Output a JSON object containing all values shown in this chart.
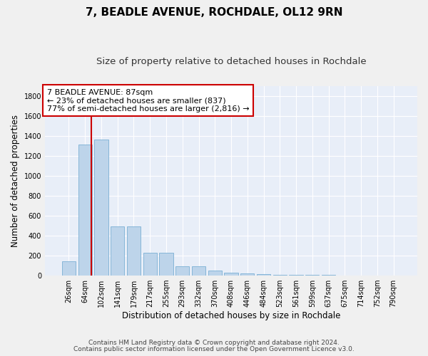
{
  "title": "7, BEADLE AVENUE, ROCHDALE, OL12 9RN",
  "subtitle": "Size of property relative to detached houses in Rochdale",
  "xlabel": "Distribution of detached houses by size in Rochdale",
  "ylabel": "Number of detached properties",
  "categories": [
    "26sqm",
    "64sqm",
    "102sqm",
    "141sqm",
    "179sqm",
    "217sqm",
    "255sqm",
    "293sqm",
    "332sqm",
    "370sqm",
    "408sqm",
    "446sqm",
    "484sqm",
    "523sqm",
    "561sqm",
    "599sqm",
    "637sqm",
    "675sqm",
    "714sqm",
    "752sqm",
    "790sqm"
  ],
  "values": [
    140,
    1310,
    1360,
    490,
    490,
    230,
    230,
    90,
    90,
    50,
    30,
    20,
    15,
    10,
    10,
    5,
    5,
    3,
    3,
    2,
    2
  ],
  "bar_color": "#bdd4ea",
  "bar_edge_color": "#7aafd4",
  "background_color": "#e8eef8",
  "grid_color": "#ffffff",
  "red_line_x": 1.38,
  "annotation_text": "7 BEADLE AVENUE: 87sqm\n← 23% of detached houses are smaller (837)\n77% of semi-detached houses are larger (2,816) →",
  "annotation_box_color": "#ffffff",
  "annotation_box_edge_color": "#cc0000",
  "footer_line1": "Contains HM Land Registry data © Crown copyright and database right 2024.",
  "footer_line2": "Contains public sector information licensed under the Open Government Licence v3.0.",
  "ylim": [
    0,
    1900
  ],
  "yticks": [
    0,
    200,
    400,
    600,
    800,
    1000,
    1200,
    1400,
    1600,
    1800
  ],
  "title_fontsize": 11,
  "subtitle_fontsize": 9.5,
  "axis_label_fontsize": 8.5,
  "tick_fontsize": 7,
  "annotation_fontsize": 8,
  "footer_fontsize": 6.5
}
